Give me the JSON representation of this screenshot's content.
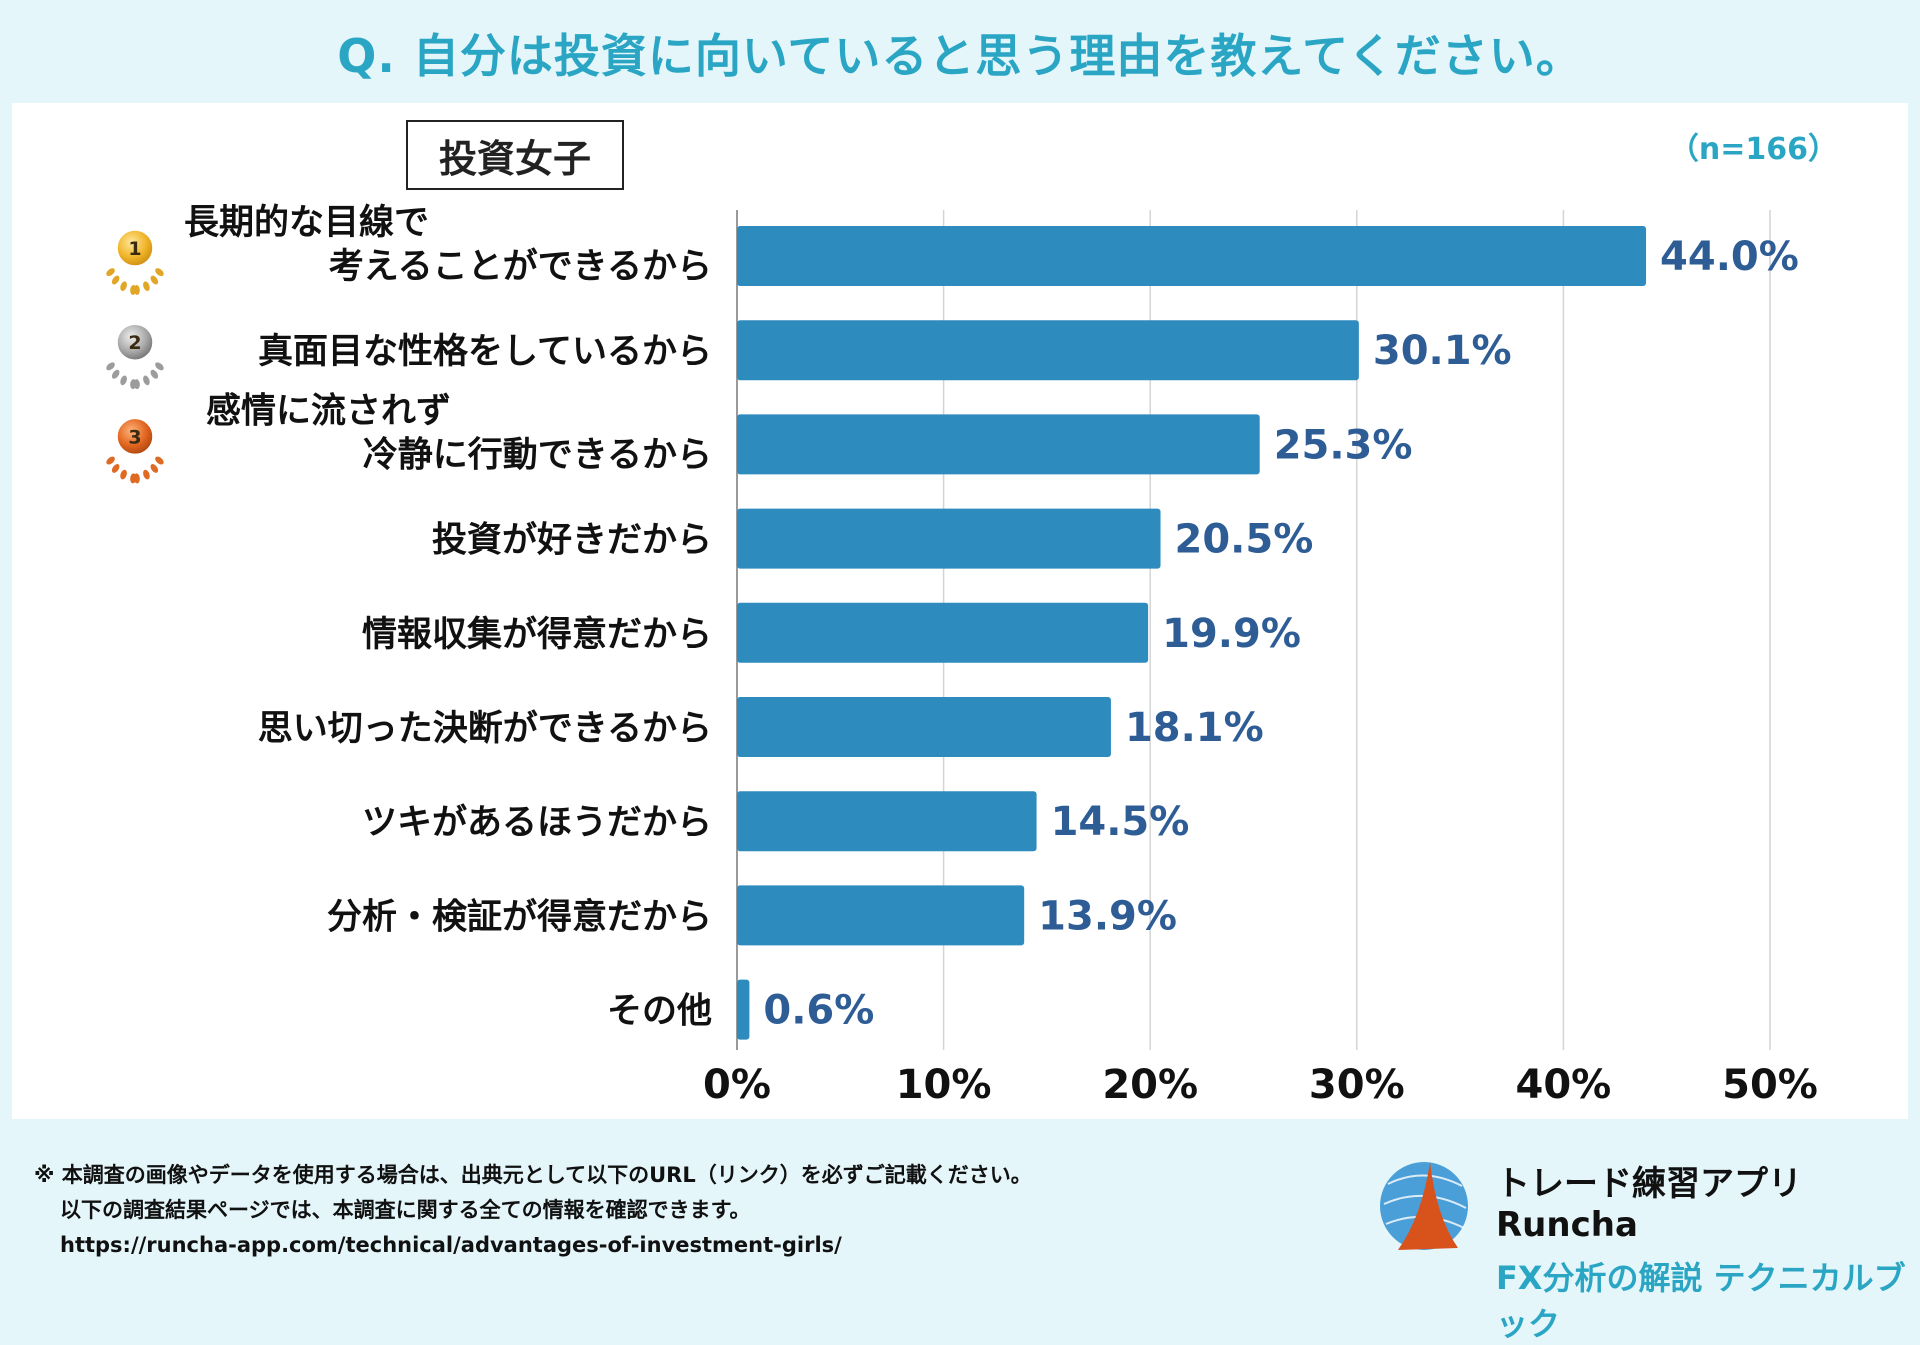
{
  "title": "Q. 自分は投資に向いていると思う理由を教えてください。",
  "badge": "投資女子",
  "sample": "（n=166）",
  "colors": {
    "bar": "#2e8bbd",
    "value_label": "#2e5d96",
    "accent": "#2aa6c4"
  },
  "chart_data": {
    "type": "bar",
    "orientation": "horizontal",
    "categories": [
      [
        "長期的な目線で",
        "考えることができるから"
      ],
      [
        "真面目な性格をしているから"
      ],
      [
        "感情に流されず",
        "冷静に行動できるから"
      ],
      [
        "投資が好きだから"
      ],
      [
        "情報収集が得意だから"
      ],
      [
        "思い切った決断ができるから"
      ],
      [
        "ツキがあるほうだから"
      ],
      [
        "分析・検証が得意だから"
      ],
      [
        "その他"
      ]
    ],
    "values": [
      44.0,
      30.1,
      25.3,
      20.5,
      19.9,
      18.1,
      14.5,
      13.9,
      0.6
    ],
    "value_labels": [
      "44.0%",
      "30.1%",
      "25.3%",
      "20.5%",
      "19.9%",
      "18.1%",
      "14.5%",
      "13.9%",
      "0.6%"
    ],
    "ranks": [
      "1",
      "2",
      "3"
    ],
    "xlim": [
      0,
      50
    ],
    "xticks": [
      0,
      10,
      20,
      30,
      40,
      50
    ],
    "xtick_labels": [
      "0%",
      "10%",
      "20%",
      "30%",
      "40%",
      "50%"
    ],
    "grid": true
  },
  "footer": {
    "line1": "※ 本調査の画像やデータを使用する場合は、出典元として以下のURL（リンク）を必ずご記載ください。",
    "line2": "以下の調査結果ページでは、本調査に関する全ての情報を確認できます。",
    "line3": "https://runcha-app.com/technical/advantages-of-investment-girls/"
  },
  "brand": {
    "line1": "トレード練習アプリ  Runcha",
    "line2": "FX分析の解説  テクニカルブック"
  }
}
